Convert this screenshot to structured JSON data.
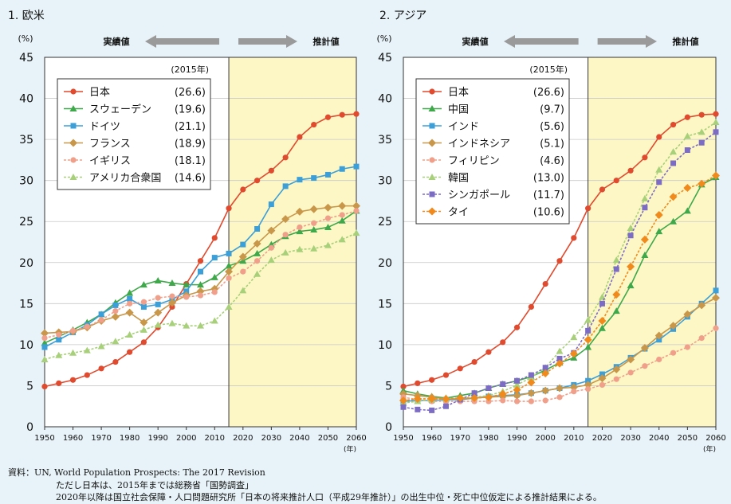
{
  "footnote": {
    "line1": "資料：UN, World Population Prospects: The 2017 Revision",
    "line2": "ただし日本は、2015年までは総務省「国勢調査」",
    "line3": "2020年以降は国立社会保障・人口問題研究所「日本の将来推計人口（平成29年推計）」の出生中位・死亡中位仮定による推計結果による。"
  },
  "chart_data": [
    {
      "type": "line",
      "title": "1. 欧米",
      "ylabel": "(%)",
      "xlabel": "(年)",
      "ylim": [
        0,
        45
      ],
      "xlim": [
        1950,
        2060
      ],
      "yticks": [
        0,
        5,
        10,
        15,
        20,
        25,
        30,
        35,
        40,
        45
      ],
      "xticks": [
        1950,
        1960,
        1970,
        1980,
        1990,
        2000,
        2010,
        2020,
        2030,
        2040,
        2050,
        2060
      ],
      "grid": true,
      "projection_start": 2015,
      "actual_label": "実績値",
      "projected_label": "推計値",
      "legend_title": "(2015年)",
      "legend_position": "top-left",
      "x": [
        1950,
        1955,
        1960,
        1965,
        1970,
        1975,
        1980,
        1985,
        1990,
        1995,
        2000,
        2005,
        2010,
        2015,
        2020,
        2025,
        2030,
        2035,
        2040,
        2045,
        2050,
        2055,
        2060
      ],
      "series": [
        {
          "name": "日本",
          "value_label": "(26.6)",
          "color": "#e04a2e",
          "marker": "circle",
          "dashed": false,
          "values": [
            4.9,
            5.3,
            5.7,
            6.3,
            7.1,
            7.9,
            9.1,
            10.3,
            12.1,
            14.6,
            17.4,
            20.2,
            23.0,
            26.6,
            28.9,
            30.0,
            31.2,
            32.8,
            35.3,
            36.8,
            37.7,
            38.0,
            38.1
          ]
        },
        {
          "name": "スウェーデン",
          "value_label": "(19.6)",
          "color": "#3fa84a",
          "marker": "triangle",
          "dashed": false,
          "values": [
            10.2,
            11.0,
            11.8,
            12.7,
            13.7,
            15.1,
            16.3,
            17.3,
            17.8,
            17.5,
            17.3,
            17.3,
            18.2,
            19.6,
            20.2,
            21.1,
            22.2,
            23.2,
            23.8,
            24.0,
            24.3,
            25.1,
            26.3
          ]
        },
        {
          "name": "ドイツ",
          "value_label": "(21.1)",
          "color": "#3d9fd8",
          "marker": "square",
          "dashed": false,
          "values": [
            9.7,
            10.6,
            11.5,
            12.4,
            13.7,
            14.8,
            15.6,
            14.6,
            14.9,
            15.5,
            16.5,
            18.9,
            20.6,
            21.1,
            22.2,
            24.1,
            27.1,
            29.3,
            30.1,
            30.3,
            30.7,
            31.4,
            31.7
          ]
        },
        {
          "name": "フランス",
          "value_label": "(18.9)",
          "color": "#c9974a",
          "marker": "diamond",
          "dashed": false,
          "values": [
            11.4,
            11.5,
            11.6,
            12.1,
            12.9,
            13.4,
            13.9,
            12.7,
            13.9,
            15.1,
            16.0,
            16.5,
            16.8,
            18.9,
            20.7,
            22.3,
            23.9,
            25.3,
            26.2,
            26.5,
            26.7,
            26.9,
            26.9
          ]
        },
        {
          "name": "イギリス",
          "value_label": "(18.1)",
          "color": "#f0a08a",
          "marker": "circle",
          "dashed": true,
          "values": [
            10.8,
            11.2,
            11.7,
            12.2,
            13.0,
            14.1,
            15.0,
            15.2,
            15.7,
            15.9,
            15.8,
            16.0,
            16.4,
            18.1,
            18.9,
            20.2,
            21.8,
            23.4,
            24.3,
            24.8,
            25.4,
            25.8,
            26.3
          ]
        },
        {
          "name": "アメリカ合衆国",
          "value_label": "(14.6)",
          "color": "#a8d07a",
          "marker": "triangle",
          "dashed": true,
          "values": [
            8.2,
            8.7,
            9.0,
            9.3,
            9.8,
            10.4,
            11.2,
            11.8,
            12.4,
            12.6,
            12.3,
            12.3,
            12.9,
            14.6,
            16.6,
            18.6,
            20.3,
            21.2,
            21.6,
            21.7,
            22.1,
            22.8,
            23.6
          ]
        }
      ]
    },
    {
      "type": "line",
      "title": "2. アジア",
      "ylabel": "(%)",
      "xlabel": "(年)",
      "ylim": [
        0,
        45
      ],
      "xlim": [
        1950,
        2060
      ],
      "yticks": [
        0,
        5,
        10,
        15,
        20,
        25,
        30,
        35,
        40,
        45
      ],
      "xticks": [
        1950,
        1960,
        1970,
        1980,
        1990,
        2000,
        2010,
        2020,
        2030,
        2040,
        2050,
        2060
      ],
      "grid": true,
      "projection_start": 2015,
      "actual_label": "実績値",
      "projected_label": "推計値",
      "legend_title": "(2015年)",
      "legend_position": "top-left",
      "x": [
        1950,
        1955,
        1960,
        1965,
        1970,
        1975,
        1980,
        1985,
        1990,
        1995,
        2000,
        2005,
        2010,
        2015,
        2020,
        2025,
        2030,
        2035,
        2040,
        2045,
        2050,
        2055,
        2060
      ],
      "series": [
        {
          "name": "日本",
          "value_label": "(26.6)",
          "color": "#e04a2e",
          "marker": "circle",
          "dashed": false,
          "values": [
            4.9,
            5.3,
            5.7,
            6.3,
            7.1,
            7.9,
            9.1,
            10.3,
            12.1,
            14.6,
            17.4,
            20.2,
            23.0,
            26.6,
            28.9,
            30.0,
            31.2,
            32.8,
            35.3,
            36.8,
            37.7,
            38.0,
            38.1
          ]
        },
        {
          "name": "中国",
          "value_label": "(9.7)",
          "color": "#3fa84a",
          "marker": "triangle",
          "dashed": false,
          "values": [
            4.4,
            4.0,
            3.7,
            3.5,
            3.8,
            4.1,
            4.7,
            5.2,
            5.6,
            6.1,
            6.9,
            7.8,
            8.4,
            9.7,
            12.0,
            14.1,
            17.2,
            20.9,
            23.8,
            25.0,
            26.3,
            29.5,
            30.4
          ]
        },
        {
          "name": "インド",
          "value_label": "(5.6)",
          "color": "#3d9fd8",
          "marker": "square",
          "dashed": false,
          "values": [
            3.1,
            3.2,
            3.2,
            3.3,
            3.3,
            3.5,
            3.7,
            3.8,
            3.9,
            4.1,
            4.4,
            4.7,
            5.1,
            5.6,
            6.4,
            7.3,
            8.4,
            9.5,
            10.6,
            11.9,
            13.4,
            15.0,
            16.6
          ]
        },
        {
          "name": "インドネシア",
          "value_label": "(5.1)",
          "color": "#c9974a",
          "marker": "diamond",
          "dashed": false,
          "values": [
            4.0,
            3.8,
            3.6,
            3.4,
            3.4,
            3.5,
            3.6,
            3.7,
            3.8,
            4.1,
            4.4,
            4.7,
            4.8,
            5.1,
            5.9,
            7.0,
            8.2,
            9.6,
            11.1,
            12.3,
            13.7,
            14.8,
            15.7
          ]
        },
        {
          "name": "フィリピン",
          "value_label": "(4.6)",
          "color": "#f0a08a",
          "marker": "circle",
          "dashed": true,
          "values": [
            3.6,
            3.3,
            3.1,
            3.1,
            3.1,
            3.1,
            3.1,
            3.2,
            3.1,
            3.1,
            3.2,
            3.6,
            4.3,
            4.6,
            5.1,
            5.8,
            6.6,
            7.4,
            8.2,
            9.0,
            9.7,
            10.8,
            12.0
          ]
        },
        {
          "name": "韓国",
          "value_label": "(13.0)",
          "color": "#a8d07a",
          "marker": "triangle",
          "dashed": true,
          "values": [
            2.9,
            3.1,
            3.3,
            3.4,
            3.5,
            3.6,
            3.8,
            4.3,
            5.1,
            6.0,
            7.2,
            9.2,
            10.9,
            13.0,
            15.8,
            20.3,
            24.2,
            27.8,
            31.3,
            33.5,
            35.4,
            35.9,
            37.1
          ]
        },
        {
          "name": "シンガポール",
          "value_label": "(11.7)",
          "color": "#7c6cc4",
          "marker": "square",
          "dashed": true,
          "values": [
            2.4,
            2.1,
            2.0,
            2.5,
            3.3,
            4.1,
            4.7,
            5.2,
            5.6,
            6.3,
            7.2,
            8.3,
            9.0,
            11.7,
            15.0,
            19.2,
            23.3,
            26.7,
            29.8,
            32.1,
            33.7,
            34.6,
            35.9
          ]
        },
        {
          "name": "タイ",
          "value_label": "(10.6)",
          "color": "#f08a1c",
          "marker": "diamond",
          "dashed": true,
          "values": [
            3.2,
            3.4,
            3.4,
            3.4,
            3.5,
            3.5,
            3.6,
            4.0,
            4.5,
            5.4,
            6.5,
            7.7,
            8.9,
            10.6,
            12.9,
            16.1,
            19.5,
            22.8,
            25.8,
            28.0,
            29.1,
            29.6,
            30.6
          ]
        }
      ]
    }
  ]
}
